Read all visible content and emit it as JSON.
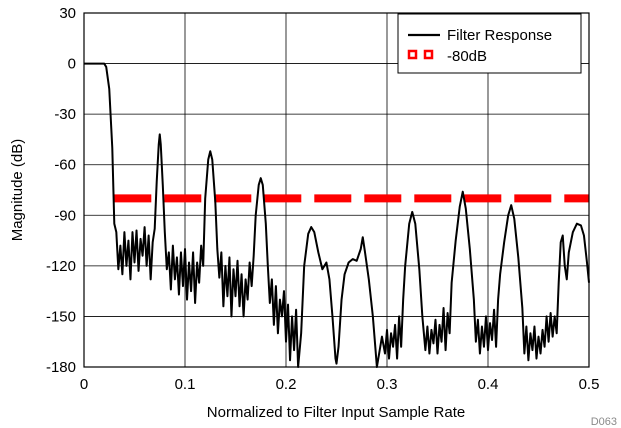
{
  "chart_data": {
    "type": "line",
    "xlabel": "Normalized to Filter Input Sample Rate",
    "ylabel": "Magnitude (dB)",
    "xlim": [
      0,
      0.5
    ],
    "ylim": [
      -180,
      30
    ],
    "x_ticks": [
      0,
      0.1,
      0.2,
      0.3,
      0.4,
      0.5
    ],
    "x_tick_labels": [
      "0",
      "0.1",
      "0.2",
      "0.3",
      "0.4",
      "0.5"
    ],
    "y_ticks": [
      30,
      0,
      -30,
      -60,
      -90,
      -120,
      -150,
      -180
    ],
    "y_tick_labels": [
      "30",
      "0",
      "-30",
      "-60",
      "-90",
      "-120",
      "-150",
      "-180"
    ],
    "grid": true,
    "legend_position": "top-right",
    "figure_code": "D063",
    "series": [
      {
        "name": "Filter Response",
        "color": "#000000",
        "style": "solid",
        "points": [
          [
            0,
            0
          ],
          [
            0.02,
            0
          ],
          [
            0.022,
            -2
          ],
          [
            0.025,
            -15
          ],
          [
            0.028,
            -50
          ],
          [
            0.03,
            -95
          ],
          [
            0.032,
            -100
          ],
          [
            0.034,
            -122
          ],
          [
            0.036,
            -108
          ],
          [
            0.038,
            -125
          ],
          [
            0.04,
            -100
          ],
          [
            0.042,
            -120
          ],
          [
            0.044,
            -105
          ],
          [
            0.046,
            -128
          ],
          [
            0.048,
            -100
          ],
          [
            0.05,
            -118
          ],
          [
            0.052,
            -99
          ],
          [
            0.054,
            -123
          ],
          [
            0.056,
            -104
          ],
          [
            0.058,
            -114
          ],
          [
            0.06,
            -97
          ],
          [
            0.062,
            -120
          ],
          [
            0.064,
            -102
          ],
          [
            0.066,
            -128
          ],
          [
            0.068,
            -106
          ],
          [
            0.07,
            -98
          ],
          [
            0.072,
            -70
          ],
          [
            0.074,
            -48
          ],
          [
            0.075,
            -42
          ],
          [
            0.076,
            -48
          ],
          [
            0.078,
            -72
          ],
          [
            0.08,
            -100
          ],
          [
            0.082,
            -122
          ],
          [
            0.084,
            -112
          ],
          [
            0.086,
            -134
          ],
          [
            0.088,
            -108
          ],
          [
            0.09,
            -128
          ],
          [
            0.092,
            -115
          ],
          [
            0.094,
            -137
          ],
          [
            0.096,
            -112
          ],
          [
            0.098,
            -132
          ],
          [
            0.1,
            -110
          ],
          [
            0.102,
            -140
          ],
          [
            0.104,
            -118
          ],
          [
            0.106,
            -135
          ],
          [
            0.108,
            -112
          ],
          [
            0.11,
            -142
          ],
          [
            0.112,
            -118
          ],
          [
            0.114,
            -130
          ],
          [
            0.116,
            -108
          ],
          [
            0.118,
            -120
          ],
          [
            0.12,
            -80
          ],
          [
            0.123,
            -57
          ],
          [
            0.125,
            -52
          ],
          [
            0.127,
            -57
          ],
          [
            0.13,
            -82
          ],
          [
            0.132,
            -110
          ],
          [
            0.134,
            -127
          ],
          [
            0.136,
            -112
          ],
          [
            0.138,
            -144
          ],
          [
            0.14,
            -120
          ],
          [
            0.142,
            -138
          ],
          [
            0.144,
            -115
          ],
          [
            0.146,
            -150
          ],
          [
            0.148,
            -122
          ],
          [
            0.15,
            -138
          ],
          [
            0.152,
            -117
          ],
          [
            0.154,
            -144
          ],
          [
            0.156,
            -125
          ],
          [
            0.158,
            -150
          ],
          [
            0.16,
            -128
          ],
          [
            0.162,
            -140
          ],
          [
            0.164,
            -118
          ],
          [
            0.166,
            -132
          ],
          [
            0.168,
            -114
          ],
          [
            0.17,
            -90
          ],
          [
            0.173,
            -72
          ],
          [
            0.175,
            -68
          ],
          [
            0.177,
            -72
          ],
          [
            0.18,
            -95
          ],
          [
            0.182,
            -120
          ],
          [
            0.184,
            -142
          ],
          [
            0.186,
            -128
          ],
          [
            0.188,
            -155
          ],
          [
            0.19,
            -132
          ],
          [
            0.192,
            -160
          ],
          [
            0.194,
            -140
          ],
          [
            0.196,
            -150
          ],
          [
            0.198,
            -135
          ],
          [
            0.2,
            -165
          ],
          [
            0.202,
            -143
          ],
          [
            0.204,
            -176
          ],
          [
            0.206,
            -150
          ],
          [
            0.208,
            -170
          ],
          [
            0.21,
            -146
          ],
          [
            0.212,
            -180
          ],
          [
            0.215,
            -160
          ],
          [
            0.218,
            -120
          ],
          [
            0.222,
            -101
          ],
          [
            0.225,
            -97
          ],
          [
            0.228,
            -100
          ],
          [
            0.232,
            -112
          ],
          [
            0.236,
            -122
          ],
          [
            0.24,
            -118
          ],
          [
            0.243,
            -128
          ],
          [
            0.246,
            -150
          ],
          [
            0.249,
            -175
          ],
          [
            0.25,
            -178
          ],
          [
            0.252,
            -168
          ],
          [
            0.255,
            -140
          ],
          [
            0.258,
            -125
          ],
          [
            0.262,
            -118
          ],
          [
            0.266,
            -116
          ],
          [
            0.27,
            -117
          ],
          [
            0.274,
            -110
          ],
          [
            0.276,
            -103
          ],
          [
            0.278,
            -111
          ],
          [
            0.282,
            -128
          ],
          [
            0.286,
            -150
          ],
          [
            0.29,
            -180
          ],
          [
            0.295,
            -162
          ],
          [
            0.298,
            -172
          ],
          [
            0.3,
            -158
          ],
          [
            0.302,
            -175
          ],
          [
            0.304,
            -160
          ],
          [
            0.306,
            -168
          ],
          [
            0.308,
            -155
          ],
          [
            0.31,
            -175
          ],
          [
            0.312,
            -150
          ],
          [
            0.314,
            -168
          ],
          [
            0.316,
            -140
          ],
          [
            0.318,
            -120
          ],
          [
            0.322,
            -95
          ],
          [
            0.325,
            -88
          ],
          [
            0.328,
            -95
          ],
          [
            0.332,
            -122
          ],
          [
            0.335,
            -150
          ],
          [
            0.338,
            -170
          ],
          [
            0.34,
            -156
          ],
          [
            0.342,
            -172
          ],
          [
            0.344,
            -158
          ],
          [
            0.346,
            -166
          ],
          [
            0.348,
            -152
          ],
          [
            0.35,
            -172
          ],
          [
            0.352,
            -155
          ],
          [
            0.354,
            -165
          ],
          [
            0.356,
            -145
          ],
          [
            0.358,
            -170
          ],
          [
            0.36,
            -148
          ],
          [
            0.362,
            -160
          ],
          [
            0.364,
            -130
          ],
          [
            0.368,
            -105
          ],
          [
            0.372,
            -85
          ],
          [
            0.375,
            -76
          ],
          [
            0.378,
            -86
          ],
          [
            0.382,
            -110
          ],
          [
            0.386,
            -140
          ],
          [
            0.388,
            -165
          ],
          [
            0.39,
            -152
          ],
          [
            0.392,
            -172
          ],
          [
            0.394,
            -156
          ],
          [
            0.396,
            -168
          ],
          [
            0.398,
            -150
          ],
          [
            0.4,
            -170
          ],
          [
            0.402,
            -154
          ],
          [
            0.404,
            -164
          ],
          [
            0.406,
            -146
          ],
          [
            0.408,
            -168
          ],
          [
            0.41,
            -140
          ],
          [
            0.412,
            -125
          ],
          [
            0.416,
            -106
          ],
          [
            0.42,
            -90
          ],
          [
            0.423,
            -84
          ],
          [
            0.426,
            -92
          ],
          [
            0.43,
            -115
          ],
          [
            0.434,
            -145
          ],
          [
            0.436,
            -172
          ],
          [
            0.438,
            -156
          ],
          [
            0.44,
            -176
          ],
          [
            0.442,
            -160
          ],
          [
            0.444,
            -170
          ],
          [
            0.446,
            -156
          ],
          [
            0.448,
            -175
          ],
          [
            0.45,
            -162
          ],
          [
            0.452,
            -172
          ],
          [
            0.454,
            -158
          ],
          [
            0.456,
            -168
          ],
          [
            0.458,
            -150
          ],
          [
            0.46,
            -165
          ],
          [
            0.462,
            -148
          ],
          [
            0.464,
            -162
          ],
          [
            0.466,
            -150
          ],
          [
            0.468,
            -160
          ],
          [
            0.47,
            -130
          ],
          [
            0.472,
            -106
          ],
          [
            0.474,
            -102
          ],
          [
            0.476,
            -120
          ],
          [
            0.478,
            -128
          ],
          [
            0.48,
            -112
          ],
          [
            0.484,
            -100
          ],
          [
            0.488,
            -95
          ],
          [
            0.492,
            -96
          ],
          [
            0.495,
            -102
          ],
          [
            0.498,
            -118
          ],
          [
            0.5,
            -130
          ]
        ]
      },
      {
        "name": "-80dB",
        "color": "#ff0000",
        "style": "dashed",
        "points": [
          [
            0.03,
            -80
          ],
          [
            0.5,
            -80
          ]
        ]
      }
    ]
  }
}
